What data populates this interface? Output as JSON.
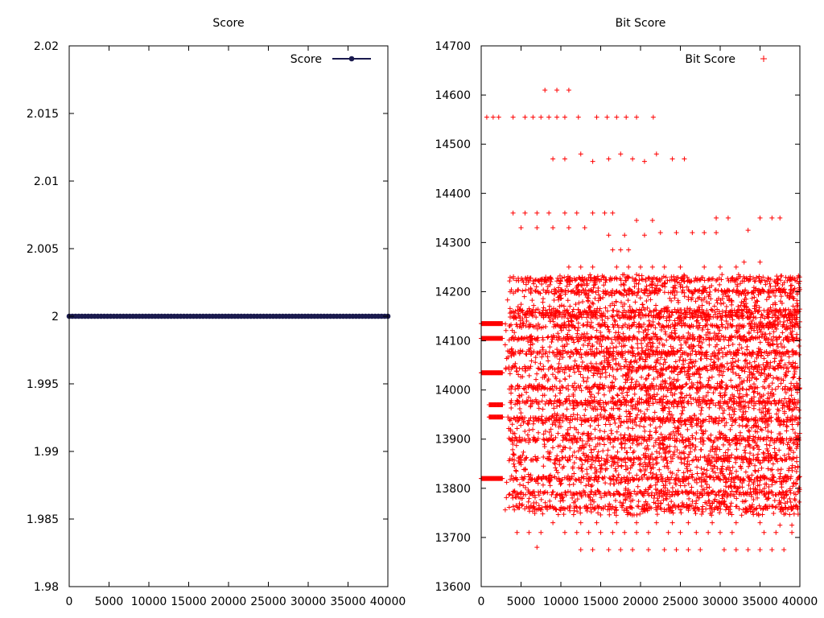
{
  "chart_data": [
    {
      "type": "line",
      "title": "Score",
      "xlabel": "",
      "ylabel": "",
      "xlim": [
        0,
        40000
      ],
      "ylim": [
        1.98,
        2.02
      ],
      "x_ticks": [
        "0",
        "5000",
        "10000",
        "15000",
        "20000",
        "25000",
        "30000",
        "35000",
        "40000"
      ],
      "y_ticks": [
        "1.98",
        "1.985",
        "1.99",
        "1.995",
        "2",
        "2.005",
        "2.01",
        "2.015",
        "2.02"
      ],
      "grid": false,
      "legend": "top-right",
      "series": [
        {
          "name": "Score",
          "color": "#1a1a4e",
          "marker": "filled-circle",
          "x": [
            0,
            40000
          ],
          "y": [
            2,
            2
          ]
        }
      ]
    },
    {
      "type": "scatter",
      "title": "Bit Score",
      "xlabel": "",
      "ylabel": "",
      "xlim": [
        0,
        40000
      ],
      "ylim": [
        13600,
        14700
      ],
      "x_ticks": [
        "0",
        "5000",
        "10000",
        "15000",
        "20000",
        "25000",
        "30000",
        "35000",
        "40000"
      ],
      "y_ticks": [
        "13600",
        "13700",
        "13800",
        "13900",
        "14000",
        "14100",
        "14200",
        "14300",
        "14400",
        "14500",
        "14600",
        "14700"
      ],
      "grid": false,
      "legend": "top-right",
      "series": [
        {
          "name": "Bit Score",
          "color": "#ff0000",
          "marker": "plus",
          "points": [
            [
              8000,
              14610
            ],
            [
              9500,
              14610
            ],
            [
              11000,
              14610
            ],
            [
              700,
              14555
            ],
            [
              1500,
              14555
            ],
            [
              2200,
              14555
            ],
            [
              4000,
              14555
            ],
            [
              5500,
              14555
            ],
            [
              6500,
              14555
            ],
            [
              7500,
              14555
            ],
            [
              8500,
              14555
            ],
            [
              9500,
              14555
            ],
            [
              10500,
              14555
            ],
            [
              12200,
              14555
            ],
            [
              14500,
              14555
            ],
            [
              15800,
              14555
            ],
            [
              17000,
              14555
            ],
            [
              18200,
              14555
            ],
            [
              19500,
              14555
            ],
            [
              21600,
              14555
            ],
            [
              9000,
              14470
            ],
            [
              10500,
              14470
            ],
            [
              12500,
              14480
            ],
            [
              14000,
              14465
            ],
            [
              16000,
              14470
            ],
            [
              17500,
              14480
            ],
            [
              19000,
              14470
            ],
            [
              20500,
              14465
            ],
            [
              22000,
              14480
            ],
            [
              24000,
              14470
            ],
            [
              25500,
              14470
            ],
            [
              4000,
              14360
            ],
            [
              5500,
              14360
            ],
            [
              7000,
              14360
            ],
            [
              8500,
              14360
            ],
            [
              10500,
              14360
            ],
            [
              12000,
              14360
            ],
            [
              14000,
              14360
            ],
            [
              15500,
              14360
            ],
            [
              16500,
              14360
            ],
            [
              19500,
              14345
            ],
            [
              21500,
              14345
            ],
            [
              29500,
              14350
            ],
            [
              31000,
              14350
            ],
            [
              35000,
              14350
            ],
            [
              36500,
              14350
            ],
            [
              37500,
              14350
            ],
            [
              5000,
              14330
            ],
            [
              7000,
              14330
            ],
            [
              9000,
              14330
            ],
            [
              11000,
              14330
            ],
            [
              13000,
              14330
            ],
            [
              16000,
              14315
            ],
            [
              18000,
              14315
            ],
            [
              20500,
              14315
            ],
            [
              22500,
              14320
            ],
            [
              24500,
              14320
            ],
            [
              26500,
              14320
            ],
            [
              28000,
              14320
            ],
            [
              29500,
              14320
            ],
            [
              33500,
              14325
            ],
            [
              16500,
              14285
            ],
            [
              17500,
              14285
            ],
            [
              18500,
              14285
            ],
            [
              11000,
              14250
            ],
            [
              12500,
              14250
            ],
            [
              14000,
              14250
            ],
            [
              17000,
              14250
            ],
            [
              18500,
              14250
            ],
            [
              20000,
              14250
            ],
            [
              21500,
              14250
            ],
            [
              23000,
              14250
            ],
            [
              25000,
              14250
            ],
            [
              28000,
              14250
            ],
            [
              30000,
              14250
            ],
            [
              32000,
              14250
            ],
            [
              33000,
              14260
            ],
            [
              35000,
              14260
            ],
            [
              7000,
              13680
            ],
            [
              12500,
              13675
            ],
            [
              14000,
              13675
            ],
            [
              16000,
              13675
            ],
            [
              17500,
              13675
            ],
            [
              19000,
              13675
            ],
            [
              21000,
              13675
            ],
            [
              23000,
              13675
            ],
            [
              24500,
              13675
            ],
            [
              26000,
              13675
            ],
            [
              27500,
              13675
            ],
            [
              30500,
              13675
            ],
            [
              32000,
              13675
            ],
            [
              33500,
              13675
            ],
            [
              35000,
              13675
            ],
            [
              36500,
              13675
            ],
            [
              38000,
              13675
            ],
            [
              4500,
              13710
            ],
            [
              6000,
              13710
            ],
            [
              7500,
              13710
            ],
            [
              10500,
              13710
            ],
            [
              12000,
              13710
            ],
            [
              13500,
              13710
            ],
            [
              15000,
              13710
            ],
            [
              16500,
              13710
            ],
            [
              18000,
              13710
            ],
            [
              19500,
              13710
            ],
            [
              21000,
              13710
            ],
            [
              23500,
              13710
            ],
            [
              25000,
              13710
            ],
            [
              27000,
              13710
            ],
            [
              28500,
              13710
            ],
            [
              30000,
              13710
            ],
            [
              31500,
              13710
            ],
            [
              35500,
              13710
            ],
            [
              37000,
              13710
            ],
            [
              39000,
              13710
            ],
            [
              9000,
              13730
            ],
            [
              12500,
              13730
            ],
            [
              14500,
              13730
            ],
            [
              17000,
              13730
            ],
            [
              19500,
              13730
            ],
            [
              22000,
              13730
            ],
            [
              24000,
              13730
            ],
            [
              26000,
              13730
            ],
            [
              29000,
              13730
            ],
            [
              32000,
              13730
            ],
            [
              35000,
              13730
            ],
            [
              37500,
              13725
            ],
            [
              39000,
              13725
            ]
          ]
        }
      ]
    }
  ]
}
